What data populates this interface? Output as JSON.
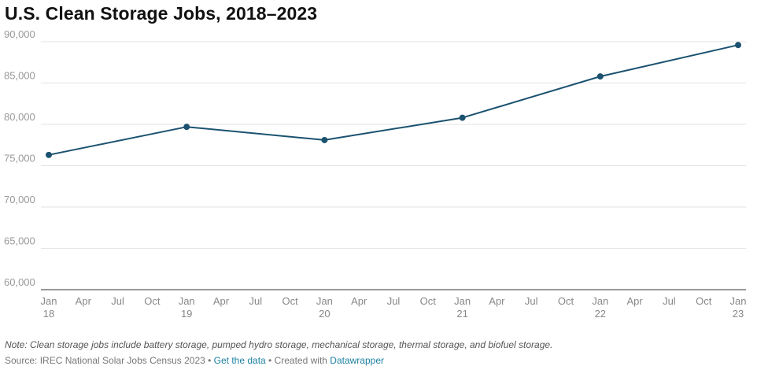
{
  "title": "U.S. Clean Storage Jobs, 2018–2023",
  "chart_data": {
    "type": "line",
    "title": "U.S. Clean Storage Jobs, 2018–2023",
    "xlabel": "",
    "ylabel": "",
    "ylim": [
      60000,
      90000
    ],
    "y_ticks": [
      {
        "value": 60000,
        "label": "60,000"
      },
      {
        "value": 65000,
        "label": "65,000"
      },
      {
        "value": 70000,
        "label": "70,000"
      },
      {
        "value": 75000,
        "label": "75,000"
      },
      {
        "value": 80000,
        "label": "80,000"
      },
      {
        "value": 85000,
        "label": "85,000"
      },
      {
        "value": 90000,
        "label": "90,000"
      }
    ],
    "x_range": [
      "2018-01",
      "2023-01"
    ],
    "x_ticks": [
      {
        "date": "2018-01",
        "line1": "Jan",
        "line2": "18"
      },
      {
        "date": "2018-04",
        "line1": "Apr",
        "line2": ""
      },
      {
        "date": "2018-07",
        "line1": "Jul",
        "line2": ""
      },
      {
        "date": "2018-10",
        "line1": "Oct",
        "line2": ""
      },
      {
        "date": "2019-01",
        "line1": "Jan",
        "line2": "19"
      },
      {
        "date": "2019-04",
        "line1": "Apr",
        "line2": ""
      },
      {
        "date": "2019-07",
        "line1": "Jul",
        "line2": ""
      },
      {
        "date": "2019-10",
        "line1": "Oct",
        "line2": ""
      },
      {
        "date": "2020-01",
        "line1": "Jan",
        "line2": "20"
      },
      {
        "date": "2020-04",
        "line1": "Apr",
        "line2": ""
      },
      {
        "date": "2020-07",
        "line1": "Jul",
        "line2": ""
      },
      {
        "date": "2020-10",
        "line1": "Oct",
        "line2": ""
      },
      {
        "date": "2021-01",
        "line1": "Jan",
        "line2": "21"
      },
      {
        "date": "2021-04",
        "line1": "Apr",
        "line2": ""
      },
      {
        "date": "2021-07",
        "line1": "Jul",
        "line2": ""
      },
      {
        "date": "2021-10",
        "line1": "Oct",
        "line2": ""
      },
      {
        "date": "2022-01",
        "line1": "Jan",
        "line2": "22"
      },
      {
        "date": "2022-04",
        "line1": "Apr",
        "line2": ""
      },
      {
        "date": "2022-07",
        "line1": "Jul",
        "line2": ""
      },
      {
        "date": "2022-10",
        "line1": "Oct",
        "line2": ""
      },
      {
        "date": "2023-01",
        "line1": "Jan",
        "line2": "23"
      }
    ],
    "series": [
      {
        "color": "#1b5270",
        "points": [
          {
            "x": "2018-01",
            "y": 76300
          },
          {
            "x": "2019-01",
            "y": 79700
          },
          {
            "x": "2020-01",
            "y": 78100
          },
          {
            "x": "2021-01",
            "y": 80800
          },
          {
            "x": "2022-01",
            "y": 85800
          },
          {
            "x": "2023-01",
            "y": 89600
          }
        ]
      }
    ],
    "grid": true,
    "legend": "none"
  },
  "footer": {
    "note": "Note: Clean storage jobs include battery storage, pumped hydro storage, mechanical storage, thermal storage, and biofuel storage.",
    "source_prefix": "Source: IREC National Solar Jobs Census 2023 • ",
    "get_data_link": "Get the data",
    "separator": " • Created with ",
    "datawrapper_link": "Datawrapper"
  }
}
